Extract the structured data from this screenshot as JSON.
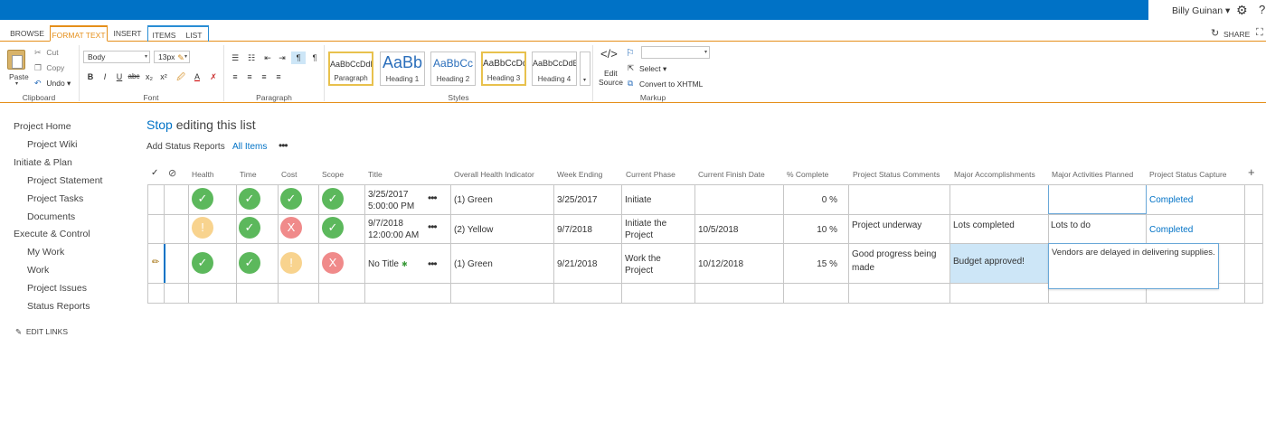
{
  "user": {
    "name": "Billy Guinan ▾",
    "gear_icon": "gear-icon",
    "help_icon": "help-icon"
  },
  "ribbon_tabs": [
    "BROWSE",
    "FORMAT TEXT",
    "INSERT",
    "ITEMS",
    "LIST"
  ],
  "share_label": "SHARE",
  "clipboard": {
    "paste": "Paste",
    "cut": "Cut",
    "copy": "Copy",
    "undo": "Undo ▾",
    "group": "Clipboard"
  },
  "font": {
    "family": "Body",
    "size": "13px",
    "group": "Font",
    "bold": "B",
    "italic": "I",
    "underline": "U",
    "strike": "abc",
    "sub": "x₂",
    "sup": "x²"
  },
  "paragraph": {
    "group": "Paragraph"
  },
  "styles": {
    "group": "Styles",
    "items": [
      {
        "sample": "AaBbCcDdE",
        "name": "Paragraph"
      },
      {
        "sample": "AaBb",
        "name": "Heading 1"
      },
      {
        "sample": "AaBbCc",
        "name": "Heading 2"
      },
      {
        "sample": "AaBbCcDd",
        "name": "Heading 3"
      },
      {
        "sample": "AaBbCcDdE",
        "name": "Heading 4"
      }
    ]
  },
  "markup": {
    "group": "Markup",
    "edit": "Edit",
    "source": "Source",
    "select": "Select ▾",
    "convert": "Convert to XHTML"
  },
  "nav": {
    "items": [
      "Project Home",
      "Project Wiki",
      "Initiate & Plan",
      "Project Statement",
      "Project Tasks",
      "Documents",
      "Execute & Control",
      "My Work",
      "Work",
      "Project Issues",
      "Status Reports"
    ],
    "edit_links": "EDIT LINKS"
  },
  "title": {
    "stop": "Stop",
    "rest": " editing this list"
  },
  "views": {
    "add": "Add Status Reports",
    "all": "All Items",
    "more": "•••"
  },
  "columns": [
    "Health",
    "Time",
    "Cost",
    "Scope",
    "Title",
    "Overall Health Indicator",
    "Week Ending",
    "Current Phase",
    "Current Finish Date",
    "% Complete",
    "Project Status Comments",
    "Major Accomplishments",
    "Major Activities Planned",
    "Project Status Capture"
  ],
  "rows": [
    {
      "health": "✓",
      "time": "✓",
      "cost": "✓",
      "scope": "✓",
      "title1": "3/25/2017",
      "title2": "5:00:00 PM",
      "indicator": "(1) Green",
      "week": "3/25/2017",
      "phase1": "Initiate",
      "phase2": "",
      "finish": "",
      "pct": "0 %",
      "comments1": "",
      "comments2": "",
      "accomp": "",
      "planned": "",
      "capture": "Completed"
    },
    {
      "health": "!",
      "time": "✓",
      "cost": "X",
      "scope": "✓",
      "title1": "9/7/2018",
      "title2": "12:00:00 AM",
      "indicator": "(2) Yellow",
      "week": "9/7/2018",
      "phase1": "Initiate the",
      "phase2": "Project",
      "finish": "10/5/2018",
      "pct": "10 %",
      "comments1": "Project underway",
      "comments2": "",
      "accomp": "Lots completed",
      "planned": "Lots to do",
      "capture": "Completed"
    },
    {
      "health": "✓",
      "time": "✓",
      "cost": "!",
      "scope": "X",
      "title1": "No Title",
      "title2": "",
      "indicator": "(1) Green",
      "week": "9/21/2018",
      "phase1": " Work the",
      "phase2": "Project",
      "finish": "10/12/2018",
      "pct": "15 %",
      "comments1": "Good progress being",
      "comments2": "made",
      "accomp": "Budget approved!",
      "planned": "Vendors are delayed in delivering supplies.",
      "capture": ""
    }
  ]
}
